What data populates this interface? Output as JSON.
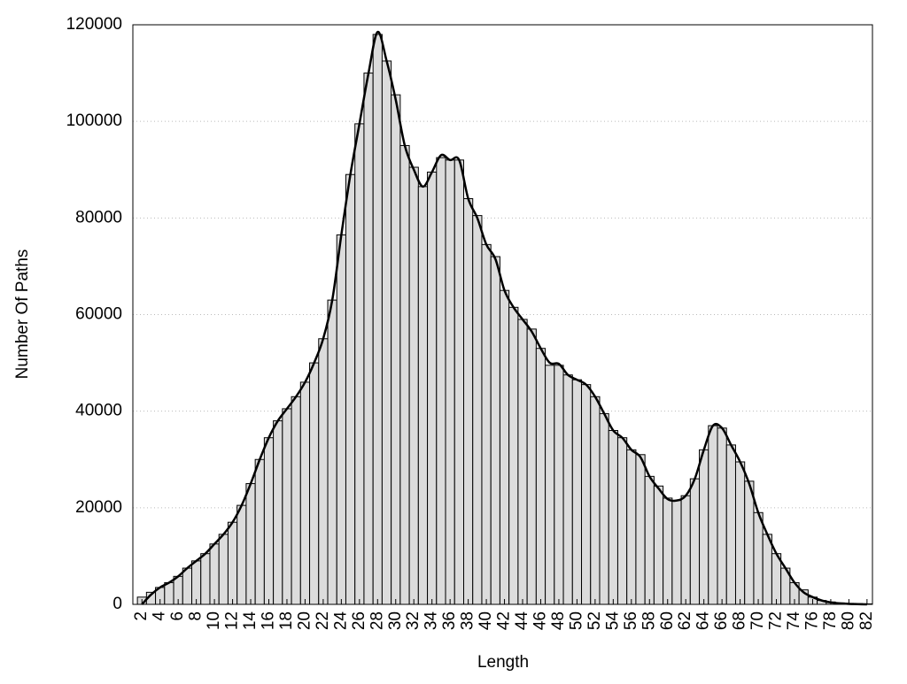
{
  "chart_data": {
    "type": "histogram",
    "xlabel": "Length",
    "ylabel": "Number Of Paths",
    "x": [
      2,
      3,
      4,
      5,
      6,
      7,
      8,
      9,
      10,
      11,
      12,
      13,
      14,
      15,
      16,
      17,
      18,
      19,
      20,
      21,
      22,
      23,
      24,
      25,
      26,
      27,
      28,
      29,
      30,
      31,
      32,
      33,
      34,
      35,
      36,
      37,
      38,
      39,
      40,
      41,
      42,
      43,
      44,
      45,
      46,
      47,
      48,
      49,
      50,
      51,
      52,
      53,
      54,
      55,
      56,
      57,
      58,
      59,
      60,
      61,
      62,
      63,
      64,
      65,
      66,
      67,
      68,
      69,
      70,
      71,
      72,
      73,
      74,
      75,
      76,
      77,
      78,
      79,
      80,
      81,
      82
    ],
    "series": [
      {
        "type": "bar",
        "color": "#dcdcdc",
        "values": [
          1500,
          2500,
          3500,
          4500,
          5800,
          7500,
          9000,
          10500,
          12500,
          14500,
          17000,
          20500,
          25000,
          30000,
          34500,
          38000,
          40500,
          43000,
          46000,
          50000,
          55000,
          63000,
          76500,
          89000,
          99500,
          110000,
          118000,
          112500,
          105500,
          95000,
          90500,
          86500,
          89500,
          92500,
          92000,
          92000,
          84000,
          80500,
          74500,
          72000,
          65000,
          61500,
          59000,
          57000,
          53000,
          49500,
          49500,
          47500,
          46500,
          45500,
          43000,
          39500,
          36000,
          34500,
          32000,
          31000,
          26500,
          24500,
          22000,
          21500,
          22500,
          26000,
          32000,
          37000,
          36500,
          33000,
          29500,
          25500,
          19000,
          14500,
          10500,
          7500,
          4500,
          3000,
          1500,
          800,
          500,
          300,
          200,
          150,
          100
        ]
      },
      {
        "type": "line",
        "color": "#000000",
        "values": [
          0,
          2000,
          3500,
          4500,
          5800,
          7500,
          9000,
          10500,
          12500,
          14500,
          17000,
          20500,
          25000,
          30000,
          34500,
          38000,
          40500,
          43000,
          46000,
          50000,
          55000,
          63000,
          76500,
          89000,
          99500,
          110000,
          118500,
          112500,
          104500,
          95000,
          90000,
          86500,
          89500,
          93000,
          92000,
          92000,
          84000,
          80000,
          74500,
          71500,
          65000,
          61500,
          59000,
          56500,
          53000,
          50000,
          49800,
          47500,
          46500,
          45500,
          43000,
          39500,
          36000,
          34500,
          32000,
          30500,
          26500,
          24000,
          21800,
          21500,
          22500,
          26000,
          32000,
          37000,
          36500,
          33000,
          29500,
          25000,
          19000,
          14500,
          10500,
          7500,
          4500,
          2500,
          1500,
          800,
          400,
          200,
          100,
          50,
          0
        ]
      }
    ],
    "xlim": [
      1,
      82.6
    ],
    "ylim": [
      0,
      120000
    ],
    "xticks": [
      2,
      4,
      6,
      8,
      10,
      12,
      14,
      16,
      18,
      20,
      22,
      24,
      26,
      28,
      30,
      32,
      34,
      36,
      38,
      40,
      42,
      44,
      46,
      48,
      50,
      52,
      54,
      56,
      58,
      60,
      62,
      64,
      66,
      68,
      70,
      72,
      74,
      76,
      78,
      80,
      82
    ],
    "yticks": [
      0,
      20000,
      40000,
      60000,
      80000,
      100000,
      120000
    ],
    "grid": true
  }
}
